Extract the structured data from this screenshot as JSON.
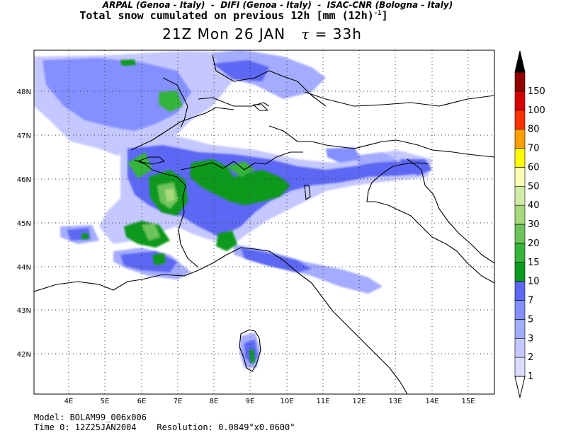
{
  "header": {
    "institutions": "ARPAL (Genoa - Italy)  -  DIFI (Genoa - Italy)  -  ISAC-CNR (Bologna - Italy)",
    "title": "Total snow cumulated on previous 12h [mm (12h)",
    "title_exp": "-1",
    "title_end": "]",
    "valid_time": "21Z Mon 26 JAN",
    "tau_symbol": "τ",
    "tau_value": "= 33h"
  },
  "axes": {
    "x_ticks": [
      "4E",
      "5E",
      "6E",
      "7E",
      "8E",
      "9E",
      "10E",
      "11E",
      "12E",
      "13E",
      "14E",
      "15E"
    ],
    "y_ticks": [
      "48N",
      "47N",
      "46N",
      "45N",
      "44N",
      "43N",
      "42N"
    ]
  },
  "legend": {
    "units": "mm",
    "levels": [
      "1",
      "2",
      "3",
      "5",
      "7",
      "10",
      "15",
      "20",
      "30",
      "40",
      "50",
      "60",
      "70",
      "80",
      "100",
      "150"
    ],
    "colors": [
      "#dcdcff",
      "#c4c8ff",
      "#a4acff",
      "#8490ff",
      "#5c68f4",
      "#0a9a1e",
      "#36b43a",
      "#6cc45a",
      "#a8d87a",
      "#d2eca8",
      "#fcfcb4",
      "#fcfc00",
      "#fca000",
      "#fc3000",
      "#d40000",
      "#900000",
      "#000000"
    ]
  },
  "footer": {
    "model": "Model: BOLAM99_006x006",
    "time0": "Time 0: 12Z25JAN2004",
    "resolution": "Resolution: 0.0849°x0.0600°"
  }
}
